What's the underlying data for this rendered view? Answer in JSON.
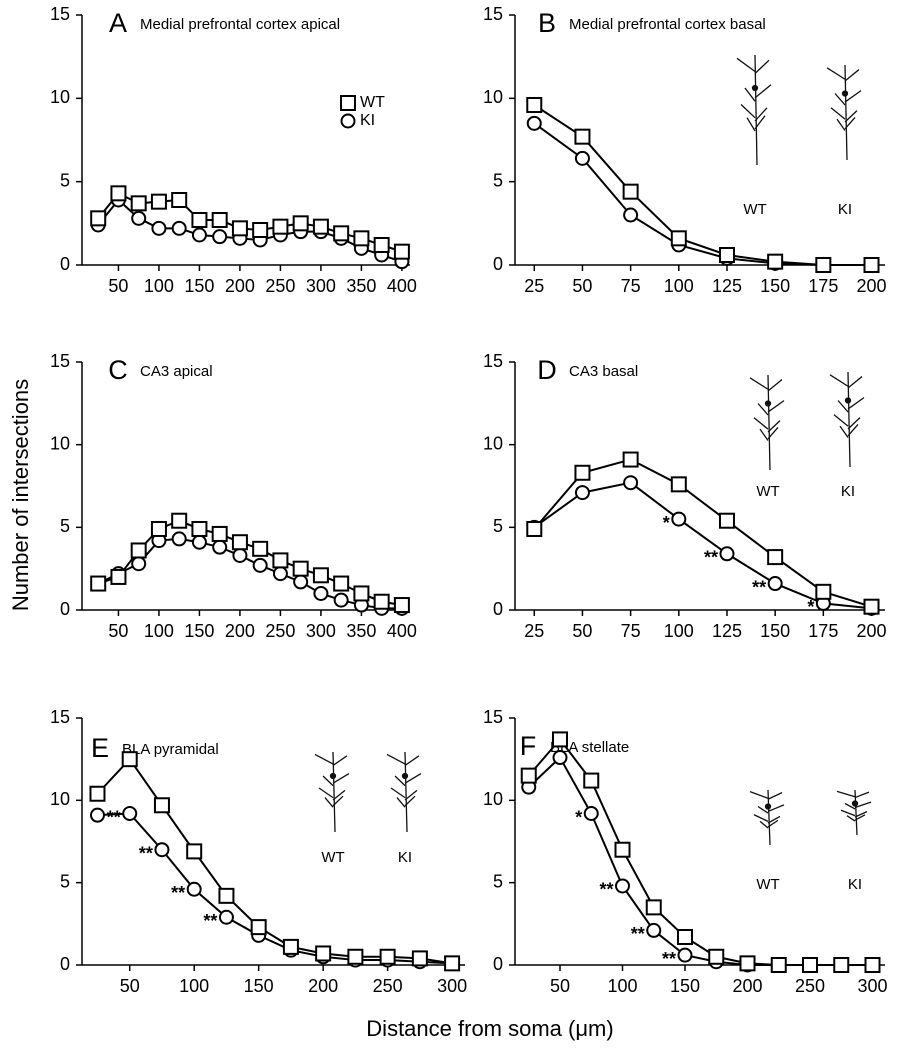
{
  "ylabel": "Number of intersections",
  "xlabel": "Distance from soma (μm)",
  "chart_data": [
    {
      "type": "line",
      "panel": "A",
      "title": "Medial prefrontal cortex apical",
      "x": [
        25,
        50,
        75,
        100,
        125,
        150,
        175,
        200,
        225,
        250,
        275,
        300,
        325,
        350,
        375,
        400
      ],
      "series": [
        {
          "name": "WT",
          "marker": "square",
          "color": "#000000",
          "values": [
            2.8,
            4.3,
            3.7,
            3.8,
            3.9,
            2.7,
            2.7,
            2.2,
            2.1,
            2.3,
            2.5,
            2.3,
            1.9,
            1.6,
            1.2,
            0.8
          ]
        },
        {
          "name": "KI",
          "marker": "circle",
          "color": "#000000",
          "values": [
            2.4,
            3.9,
            2.8,
            2.2,
            2.2,
            1.8,
            1.7,
            1.6,
            1.5,
            1.8,
            2.0,
            2.0,
            1.6,
            1.0,
            0.6,
            0.2
          ]
        }
      ],
      "xlim": [
        5,
        410
      ],
      "xticks": [
        50,
        100,
        150,
        200,
        250,
        300,
        350,
        400
      ],
      "ylim": [
        0,
        15
      ],
      "yticks": [
        0,
        5,
        10,
        15
      ],
      "legend": "upper right"
    },
    {
      "type": "line",
      "panel": "B",
      "title": "Medial prefrontal cortex basal",
      "x": [
        25,
        50,
        75,
        100,
        125,
        150,
        175,
        200
      ],
      "series": [
        {
          "name": "WT",
          "marker": "square",
          "color": "#000000",
          "values": [
            9.6,
            7.7,
            4.4,
            1.6,
            0.6,
            0.2,
            0,
            0
          ]
        },
        {
          "name": "KI",
          "marker": "circle",
          "color": "#000000",
          "values": [
            8.5,
            6.4,
            3.0,
            1.2,
            0.4,
            0.1,
            0,
            0
          ]
        }
      ],
      "xlim": [
        15,
        207
      ],
      "xticks": [
        25,
        50,
        75,
        100,
        125,
        150,
        175,
        200
      ],
      "ylim": [
        0,
        15
      ],
      "yticks": [
        0,
        5,
        10,
        15
      ],
      "inset_labels": [
        "WT",
        "KI"
      ]
    },
    {
      "type": "line",
      "panel": "C",
      "title": "CA3 apical",
      "x": [
        25,
        50,
        75,
        100,
        125,
        150,
        175,
        200,
        225,
        250,
        275,
        300,
        325,
        350,
        375,
        400
      ],
      "series": [
        {
          "name": "WT",
          "marker": "square",
          "color": "#000000",
          "values": [
            1.6,
            2.0,
            3.6,
            4.9,
            5.4,
            4.9,
            4.6,
            4.1,
            3.7,
            3.0,
            2.5,
            2.1,
            1.6,
            1.0,
            0.5,
            0.3
          ]
        },
        {
          "name": "KI",
          "marker": "circle",
          "color": "#000000",
          "values": [
            1.6,
            2.2,
            2.8,
            4.2,
            4.3,
            4.1,
            3.8,
            3.3,
            2.7,
            2.2,
            1.7,
            1.0,
            0.6,
            0.3,
            0.1,
            0.1
          ]
        }
      ],
      "xlim": [
        5,
        410
      ],
      "xticks": [
        50,
        100,
        150,
        200,
        250,
        300,
        350,
        400
      ],
      "ylim": [
        0,
        15
      ],
      "yticks": [
        0,
        5,
        10,
        15
      ]
    },
    {
      "type": "line",
      "panel": "D",
      "title": "CA3 basal",
      "x": [
        25,
        50,
        75,
        100,
        125,
        150,
        175,
        200
      ],
      "series": [
        {
          "name": "WT",
          "marker": "square",
          "color": "#000000",
          "values": [
            4.9,
            8.3,
            9.1,
            7.6,
            5.4,
            3.2,
            1.1,
            0.2
          ]
        },
        {
          "name": "KI",
          "marker": "circle",
          "color": "#000000",
          "values": [
            5.0,
            7.1,
            7.7,
            5.5,
            3.4,
            1.6,
            0.4,
            0.1
          ],
          "significance": [
            null,
            null,
            null,
            "*",
            "**",
            "**",
            "*",
            null
          ]
        }
      ],
      "xlim": [
        15,
        207
      ],
      "xticks": [
        25,
        50,
        75,
        100,
        125,
        150,
        175,
        200
      ],
      "ylim": [
        0,
        15
      ],
      "yticks": [
        0,
        5,
        10,
        15
      ],
      "inset_labels": [
        "WT",
        "KI"
      ]
    },
    {
      "type": "line",
      "panel": "E",
      "title": "BLA pyramidal",
      "x": [
        25,
        50,
        75,
        100,
        125,
        150,
        175,
        200,
        225,
        250,
        275,
        300
      ],
      "series": [
        {
          "name": "WT",
          "marker": "square",
          "color": "#000000",
          "values": [
            10.4,
            12.5,
            9.7,
            6.9,
            4.2,
            2.3,
            1.1,
            0.7,
            0.5,
            0.5,
            0.4,
            0.1
          ]
        },
        {
          "name": "KI",
          "marker": "circle",
          "color": "#000000",
          "values": [
            9.1,
            9.2,
            7.0,
            4.6,
            2.9,
            1.8,
            0.9,
            0.5,
            0.3,
            0.3,
            0.2,
            0.1
          ],
          "significance": [
            null,
            "**",
            "**",
            "**",
            "**",
            null,
            null,
            null,
            null,
            null,
            null,
            null
          ]
        }
      ],
      "xlim": [
        13,
        310
      ],
      "xticks": [
        50,
        100,
        150,
        200,
        250,
        300
      ],
      "ylim": [
        0,
        15
      ],
      "yticks": [
        0,
        5,
        10,
        15
      ],
      "inset_labels": [
        "WT",
        "KI"
      ]
    },
    {
      "type": "line",
      "panel": "F",
      "title": "BLA stellate",
      "x": [
        25,
        50,
        75,
        100,
        125,
        150,
        175,
        200,
        225,
        250,
        275,
        300
      ],
      "series": [
        {
          "name": "WT",
          "marker": "square",
          "color": "#000000",
          "values": [
            11.5,
            13.7,
            11.2,
            7.0,
            3.5,
            1.7,
            0.5,
            0.1,
            0,
            0,
            0,
            0
          ]
        },
        {
          "name": "KI",
          "marker": "circle",
          "color": "#000000",
          "values": [
            10.8,
            12.6,
            9.2,
            4.8,
            2.1,
            0.6,
            0.2,
            0,
            0,
            0,
            0,
            0
          ],
          "significance": [
            null,
            null,
            "*",
            "**",
            "**",
            "**",
            null,
            null,
            null,
            null,
            null,
            null
          ]
        }
      ],
      "xlim": [
        14,
        310
      ],
      "xticks": [
        50,
        100,
        150,
        200,
        250,
        300
      ],
      "ylim": [
        0,
        15
      ],
      "yticks": [
        0,
        5,
        10,
        15
      ],
      "inset_labels": [
        "WT",
        "KI"
      ]
    }
  ]
}
